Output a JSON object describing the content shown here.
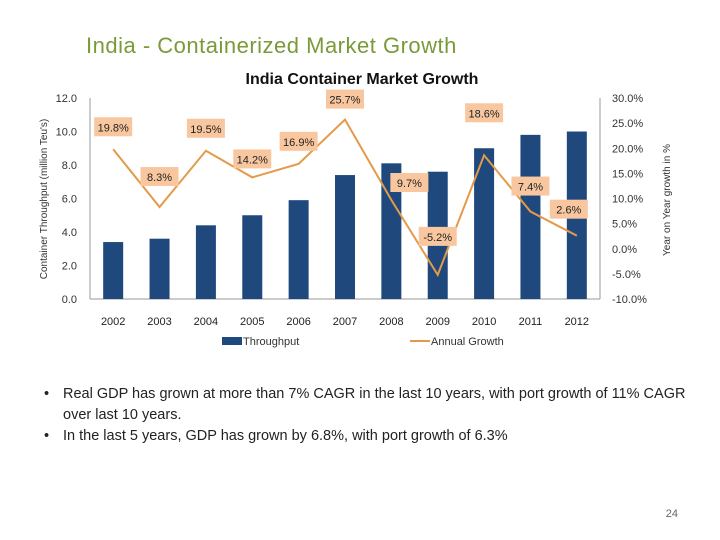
{
  "slide": {
    "title": "India  - Containerized Market Growth",
    "bullets": [
      "Real GDP has grown at more than 7% CAGR in the last 10 years, with port growth of 11% CAGR over last 10 years.",
      "In the last 5 years, GDP has grown by 6.8%, with port growth of 6.3%"
    ],
    "page_number": "24"
  },
  "chart_data": {
    "type": "bar+line",
    "title": "India Container Market Growth",
    "categories": [
      "2002",
      "2003",
      "2004",
      "2005",
      "2006",
      "2007",
      "2008",
      "2009",
      "2010",
      "2011",
      "2012"
    ],
    "series": [
      {
        "name": "Throughput",
        "type": "bar",
        "axis": "left",
        "color": "#1f497d",
        "values": [
          3.4,
          3.6,
          4.4,
          5.0,
          5.9,
          7.4,
          8.1,
          7.6,
          9.0,
          9.8,
          10.0
        ]
      },
      {
        "name": "Annual Growth",
        "type": "line",
        "axis": "right",
        "color": "#e39a4a",
        "values": [
          19.8,
          8.3,
          19.5,
          14.2,
          16.9,
          25.7,
          9.7,
          -5.2,
          18.6,
          7.4,
          2.6
        ],
        "labels": [
          "19.8%",
          "8.3%",
          "19.5%",
          "14.2%",
          "16.9%",
          "25.7%",
          "9.7%",
          "-5.2%",
          "18.6%",
          "7.4%",
          "2.6%"
        ]
      }
    ],
    "ylabel": "Container Throughput (million Teu's)",
    "y2label": "Year on Year growth in %",
    "ylim": [
      0,
      12
    ],
    "y2lim": [
      -10,
      30
    ],
    "yticks": [
      "0.0",
      "2.0",
      "4.0",
      "6.0",
      "8.0",
      "10.0",
      "12.0"
    ],
    "y2ticks": [
      "-10.0%",
      "-5.0%",
      "0.0%",
      "5.0%",
      "10.0%",
      "15.0%",
      "20.0%",
      "25.0%",
      "30.0%"
    ],
    "legend_position": "bottom",
    "grid": false
  }
}
